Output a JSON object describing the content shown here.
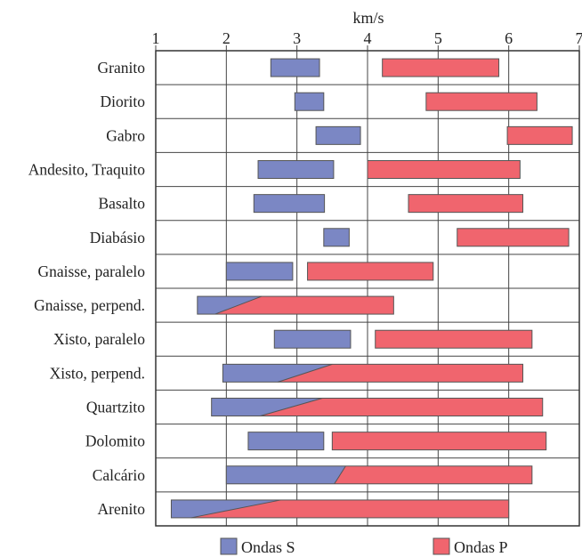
{
  "chart_data": {
    "type": "bar",
    "title": "",
    "xlabel": "km/s",
    "ylabel": "",
    "xlim": [
      1,
      7
    ],
    "xticks": [
      "1",
      "2",
      "3",
      "4",
      "5",
      "6",
      "7"
    ],
    "grid": true,
    "legend_position": "bottom",
    "series": [
      {
        "name": "Ondas S",
        "color": "#7b87c4"
      },
      {
        "name": "Ondas P",
        "color": "#f0656e"
      }
    ],
    "rocks": [
      {
        "label": "Granito",
        "s": [
          2.63,
          3.32
        ],
        "p": [
          4.21,
          5.86
        ]
      },
      {
        "label": "Diorito",
        "s": [
          2.97,
          3.38
        ],
        "p": [
          4.83,
          6.4
        ]
      },
      {
        "label": "Gabro",
        "s": [
          3.27,
          3.9
        ],
        "p": [
          5.98,
          6.9
        ]
      },
      {
        "label": "Andesito, Traquito",
        "s": [
          2.45,
          3.52
        ],
        "p": [
          4.0,
          6.16
        ]
      },
      {
        "label": "Basalto",
        "s": [
          2.39,
          3.39
        ],
        "p": [
          4.58,
          6.2
        ]
      },
      {
        "label": "Diabásio",
        "s": [
          3.38,
          3.74
        ],
        "p": [
          5.27,
          6.85
        ]
      },
      {
        "label": "Gnaisse, paralelo",
        "s": [
          2.0,
          2.94
        ],
        "p": [
          3.15,
          4.93
        ]
      },
      {
        "label": "Gnaisse, perpend.",
        "s": [
          1.59,
          2.5
        ],
        "p": [
          1.84,
          4.37
        ]
      },
      {
        "label": "Xisto, paralelo",
        "s": [
          2.68,
          3.76
        ],
        "p": [
          4.11,
          6.33
        ]
      },
      {
        "label": "Xisto, perpend.",
        "s": [
          1.95,
          3.5
        ],
        "p": [
          2.73,
          6.2
        ]
      },
      {
        "label": "Quartzito",
        "s": [
          1.79,
          3.36
        ],
        "p": [
          2.48,
          6.48
        ]
      },
      {
        "label": "Dolomito",
        "s": [
          2.31,
          3.38
        ],
        "p": [
          3.5,
          6.53
        ]
      },
      {
        "label": "Calcário",
        "s": [
          2.0,
          3.69
        ],
        "p": [
          3.53,
          6.33
        ]
      },
      {
        "label": "Arenito",
        "s": [
          1.22,
          2.77
        ],
        "p": [
          1.5,
          6.0
        ]
      }
    ]
  }
}
